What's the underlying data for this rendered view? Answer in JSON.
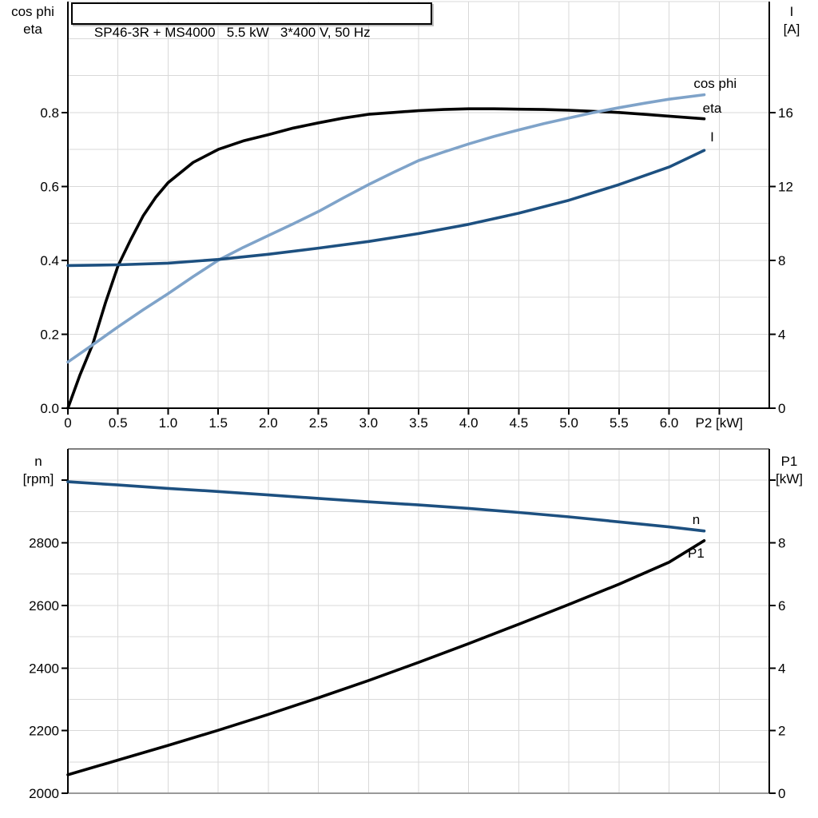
{
  "title": "SP46-3R + MS4000   5.5 kW   3*400 V, 50 Hz",
  "colors": {
    "black_curve": "#000000",
    "dark_blue_curve": "#1D5080",
    "light_blue_curve": "#7FA3C9",
    "gridline": "#D9D9D9",
    "axis": "#000000",
    "gray_border": "#808080"
  },
  "chart_data": [
    {
      "type": "line",
      "title": "SP46-3R + MS4000   5.5 kW   3*400 V, 50 Hz",
      "x_axis": {
        "label": "P2 [kW]",
        "min": 0,
        "max": 7,
        "gridlines": [
          0.5,
          1,
          1.5,
          2,
          2.5,
          3,
          3.5,
          4,
          4.5,
          5,
          5.5,
          6,
          6.5
        ],
        "ticks": [
          {
            "v": 0,
            "label": "0"
          },
          {
            "v": 0.5,
            "label": "0.5"
          },
          {
            "v": 1,
            "label": "1.0"
          },
          {
            "v": 1.5,
            "label": "1.5"
          },
          {
            "v": 2,
            "label": "2.0"
          },
          {
            "v": 2.5,
            "label": "2.5"
          },
          {
            "v": 3,
            "label": "3.0"
          },
          {
            "v": 3.5,
            "label": "3.5"
          },
          {
            "v": 4,
            "label": "4.0"
          },
          {
            "v": 4.5,
            "label": "4.5"
          },
          {
            "v": 5,
            "label": "5.0"
          },
          {
            "v": 5.5,
            "label": "5.5"
          },
          {
            "v": 6,
            "label": "6.0"
          },
          {
            "v": 6.5,
            "label": "P2 [kW]"
          }
        ]
      },
      "y_left": {
        "header": [
          "cos phi",
          "eta"
        ],
        "min": 0,
        "max": 1.1,
        "gridlines": [
          0.1,
          0.2,
          0.3,
          0.4,
          0.5,
          0.6,
          0.7,
          0.8,
          0.9,
          1.0
        ],
        "ticks": [
          {
            "v": 0,
            "label": "0.0"
          },
          {
            "v": 0.2,
            "label": "0.2"
          },
          {
            "v": 0.4,
            "label": "0.4"
          },
          {
            "v": 0.6,
            "label": "0.6"
          },
          {
            "v": 0.8,
            "label": "0.8"
          }
        ]
      },
      "y_right": {
        "header": [
          "I",
          "[A]"
        ],
        "min": 0,
        "max": 22,
        "ticks": [
          {
            "v": 0,
            "label": "0"
          },
          {
            "v": 4,
            "label": "4"
          },
          {
            "v": 8,
            "label": "8"
          },
          {
            "v": 12,
            "label": "12"
          },
          {
            "v": 16,
            "label": "16"
          }
        ]
      },
      "series": [
        {
          "name": "eta",
          "color": "#000000",
          "axis": "left",
          "label": {
            "text": "eta",
            "x": 6.43,
            "y": 0.813
          },
          "points": [
            [
              0,
              0
            ],
            [
              0.12,
              0.09
            ],
            [
              0.25,
              0.175
            ],
            [
              0.375,
              0.285
            ],
            [
              0.5,
              0.385
            ],
            [
              0.625,
              0.455
            ],
            [
              0.75,
              0.52
            ],
            [
              0.875,
              0.57
            ],
            [
              1,
              0.61
            ],
            [
              1.25,
              0.665
            ],
            [
              1.5,
              0.7
            ],
            [
              1.75,
              0.723
            ],
            [
              2,
              0.74
            ],
            [
              2.25,
              0.758
            ],
            [
              2.5,
              0.772
            ],
            [
              2.75,
              0.785
            ],
            [
              3,
              0.795
            ],
            [
              3.25,
              0.8
            ],
            [
              3.5,
              0.805
            ],
            [
              3.75,
              0.808
            ],
            [
              4,
              0.81
            ],
            [
              4.25,
              0.81
            ],
            [
              4.5,
              0.809
            ],
            [
              4.75,
              0.808
            ],
            [
              5,
              0.806
            ],
            [
              5.25,
              0.803
            ],
            [
              5.5,
              0.8
            ],
            [
              5.75,
              0.795
            ],
            [
              6,
              0.79
            ],
            [
              6.2,
              0.786
            ],
            [
              6.35,
              0.783
            ]
          ]
        },
        {
          "name": "cos phi",
          "color": "#7FA3C9",
          "axis": "left",
          "label": {
            "text": "cos phi",
            "x": 6.46,
            "y": 0.88
          },
          "points": [
            [
              0,
              0.125
            ],
            [
              0.25,
              0.172
            ],
            [
              0.5,
              0.22
            ],
            [
              0.75,
              0.266
            ],
            [
              1,
              0.31
            ],
            [
              1.25,
              0.356
            ],
            [
              1.5,
              0.4
            ],
            [
              1.75,
              0.435
            ],
            [
              2,
              0.467
            ],
            [
              2.25,
              0.499
            ],
            [
              2.5,
              0.532
            ],
            [
              2.75,
              0.569
            ],
            [
              3,
              0.605
            ],
            [
              3.25,
              0.638
            ],
            [
              3.5,
              0.67
            ],
            [
              3.75,
              0.693
            ],
            [
              4,
              0.715
            ],
            [
              4.25,
              0.735
            ],
            [
              4.5,
              0.753
            ],
            [
              4.75,
              0.77
            ],
            [
              5,
              0.785
            ],
            [
              5.25,
              0.8
            ],
            [
              5.5,
              0.813
            ],
            [
              5.75,
              0.825
            ],
            [
              6,
              0.836
            ],
            [
              6.35,
              0.848
            ]
          ]
        },
        {
          "name": "I",
          "color": "#1D5080",
          "axis": "right",
          "label": {
            "text": "I",
            "x": 6.43,
            "y": 14.7
          },
          "points": [
            [
              0,
              7.72
            ],
            [
              0.5,
              7.76
            ],
            [
              1,
              7.85
            ],
            [
              1.5,
              8.05
            ],
            [
              2,
              8.33
            ],
            [
              2.5,
              8.66
            ],
            [
              3,
              9.02
            ],
            [
              3.5,
              9.45
            ],
            [
              4,
              9.95
            ],
            [
              4.5,
              10.55
            ],
            [
              5,
              11.25
            ],
            [
              5.5,
              12.1
            ],
            [
              6,
              13.05
            ],
            [
              6.35,
              13.95
            ]
          ]
        }
      ]
    },
    {
      "type": "line",
      "x_axis": {
        "label": "",
        "min": 0,
        "max": 7,
        "gridlines": [
          0.5,
          1,
          1.5,
          2,
          2.5,
          3,
          3.5,
          4,
          4.5,
          5,
          5.5,
          6,
          6.5
        ],
        "ticks": []
      },
      "y_left": {
        "header": [
          "n",
          "[rpm]"
        ],
        "min": 2000,
        "max": 3100,
        "gridlines": [
          2100,
          2200,
          2300,
          2400,
          2500,
          2600,
          2700,
          2800,
          2900,
          3000
        ],
        "ticks": [
          {
            "v": 2000,
            "label": "2000"
          },
          {
            "v": 2200,
            "label": "2200"
          },
          {
            "v": 2400,
            "label": "2400"
          },
          {
            "v": 2600,
            "label": "2600"
          },
          {
            "v": 2800,
            "label": "2800"
          },
          {
            "v": 3000,
            "label": ""
          }
        ]
      },
      "y_right": {
        "header": [
          "P1",
          "[kW]"
        ],
        "min": 0,
        "max": 11,
        "ticks": [
          {
            "v": 0,
            "label": "0"
          },
          {
            "v": 2,
            "label": "2"
          },
          {
            "v": 4,
            "label": "4"
          },
          {
            "v": 6,
            "label": "6"
          },
          {
            "v": 8,
            "label": "8"
          },
          {
            "v": 10,
            "label": ""
          }
        ]
      },
      "series": [
        {
          "name": "n",
          "color": "#1D5080",
          "axis": "left",
          "label": {
            "text": "n",
            "x": 6.27,
            "y": 2876
          },
          "points": [
            [
              0,
              2995
            ],
            [
              0.5,
              2985
            ],
            [
              1,
              2974
            ],
            [
              1.5,
              2964
            ],
            [
              2,
              2953
            ],
            [
              2.5,
              2942
            ],
            [
              3,
              2931
            ],
            [
              3.5,
              2921
            ],
            [
              4,
              2910
            ],
            [
              4.5,
              2897
            ],
            [
              5,
              2883
            ],
            [
              5.5,
              2867
            ],
            [
              6,
              2851
            ],
            [
              6.35,
              2838
            ]
          ]
        },
        {
          "name": "P1",
          "color": "#000000",
          "axis": "right",
          "label": {
            "text": "P1",
            "x": 6.27,
            "y": 7.68
          },
          "points": [
            [
              0,
              0.59
            ],
            [
              0.5,
              1.06
            ],
            [
              1,
              1.53
            ],
            [
              1.5,
              2.01
            ],
            [
              2,
              2.52
            ],
            [
              2.5,
              3.05
            ],
            [
              3,
              3.6
            ],
            [
              3.5,
              4.18
            ],
            [
              4,
              4.78
            ],
            [
              4.5,
              5.4
            ],
            [
              5,
              6.03
            ],
            [
              5.5,
              6.68
            ],
            [
              6,
              7.38
            ],
            [
              6.35,
              8.07
            ]
          ]
        }
      ]
    }
  ]
}
